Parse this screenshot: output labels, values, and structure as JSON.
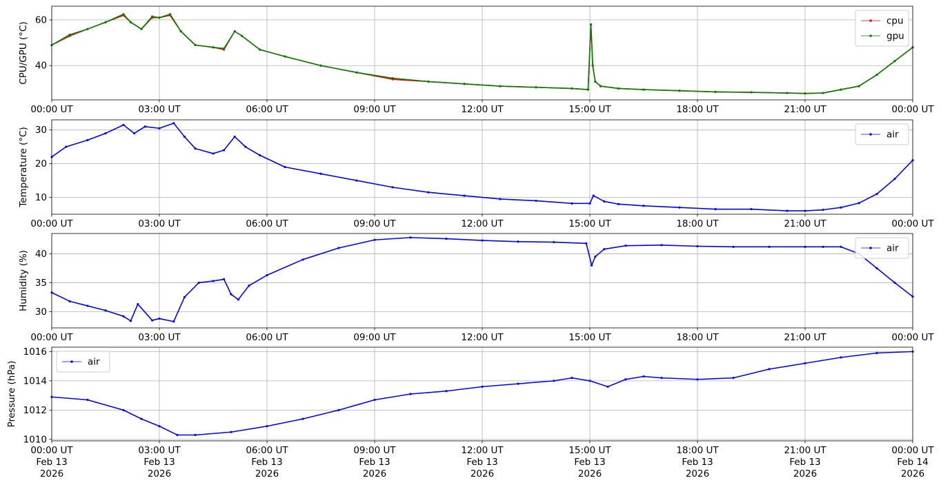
{
  "chart_data": [
    {
      "type": "line",
      "ylabel": "CPU/GPU (°C)",
      "ylim": [
        25,
        66
      ],
      "yticks": [
        40,
        60
      ],
      "grid": true,
      "legend": "top-right",
      "x_ticks": [
        "00:00 UT",
        "03:00 UT",
        "06:00 UT",
        "09:00 UT",
        "12:00 UT",
        "15:00 UT",
        "18:00 UT",
        "21:00 UT",
        "00:00 UT"
      ],
      "x_unit": "hours since 00:00 UT Feb 13 2026",
      "series": [
        {
          "name": "cpu",
          "color": "#ff0000",
          "x": [
            0,
            0.5,
            1.0,
            1.5,
            2.0,
            2.2,
            2.5,
            2.8,
            3.0,
            3.3,
            3.6,
            4.0,
            4.5,
            4.8,
            5.1,
            5.3,
            5.8,
            6.5,
            7.5,
            8.5,
            9.5,
            10.5,
            11.5,
            12.5,
            13.5,
            14.5,
            14.95,
            15.03,
            15.08,
            15.15,
            15.3,
            15.8,
            16.5,
            17.5,
            18.5,
            19.5,
            20.5,
            21.0,
            21.5,
            22.0,
            22.5,
            23.0,
            23.5,
            24.0
          ],
          "y": [
            49,
            53,
            56,
            59,
            62,
            59,
            56,
            61,
            61,
            62,
            55,
            49,
            48,
            47,
            55,
            53,
            47,
            44,
            40,
            37,
            34,
            33,
            32,
            31,
            30.5,
            30,
            29.5,
            58,
            40,
            33,
            31,
            30,
            29.5,
            29,
            28.5,
            28.3,
            28,
            27.8,
            28,
            29.5,
            31,
            36,
            42,
            48
          ]
        },
        {
          "name": "gpu",
          "color": "#008000",
          "x": [
            0,
            0.5,
            1.0,
            1.5,
            2.0,
            2.2,
            2.5,
            2.8,
            3.0,
            3.3,
            3.6,
            4.0,
            4.5,
            4.8,
            5.1,
            5.3,
            5.8,
            6.5,
            7.5,
            8.5,
            9.5,
            10.5,
            11.5,
            12.5,
            13.5,
            14.5,
            14.95,
            15.03,
            15.08,
            15.15,
            15.3,
            15.8,
            16.5,
            17.5,
            18.5,
            19.5,
            20.5,
            21.0,
            21.5,
            22.0,
            22.5,
            23.0,
            23.5,
            24.0
          ],
          "y": [
            49,
            53.5,
            56,
            59,
            62.5,
            59,
            56,
            61.5,
            61,
            62.5,
            55,
            49,
            48,
            47.5,
            55,
            53,
            47,
            44,
            40,
            37,
            34.5,
            33,
            32,
            31,
            30.5,
            30,
            29.5,
            58,
            40,
            33,
            31,
            30,
            29.5,
            29,
            28.5,
            28.3,
            28,
            27.8,
            28,
            29.5,
            31,
            36,
            42,
            48
          ]
        }
      ]
    },
    {
      "type": "line",
      "ylabel": "Temperature (°C)",
      "ylim": [
        5,
        33
      ],
      "yticks": [
        10,
        20,
        30
      ],
      "grid": true,
      "legend": "top-right",
      "x_ticks": [
        "00:00 UT",
        "03:00 UT",
        "06:00 UT",
        "09:00 UT",
        "12:00 UT",
        "15:00 UT",
        "18:00 UT",
        "21:00 UT",
        "00:00 UT"
      ],
      "x_unit": "hours since 00:00 UT Feb 13 2026",
      "series": [
        {
          "name": "air",
          "color": "#0000ff",
          "x": [
            0,
            0.4,
            1.0,
            1.5,
            2.0,
            2.3,
            2.6,
            3.0,
            3.4,
            3.7,
            4.0,
            4.5,
            4.8,
            5.1,
            5.4,
            5.8,
            6.5,
            7.5,
            8.5,
            9.5,
            10.5,
            11.5,
            12.5,
            13.5,
            14.5,
            15.0,
            15.1,
            15.4,
            15.8,
            16.5,
            17.5,
            18.5,
            19.5,
            20.5,
            21.0,
            21.5,
            22.0,
            22.5,
            23.0,
            23.5,
            24.0
          ],
          "y": [
            22,
            25,
            27,
            29,
            31.5,
            29,
            31,
            30.5,
            32,
            28,
            24.5,
            23,
            24,
            28,
            25,
            22.5,
            19,
            17,
            15,
            13,
            11.5,
            10.5,
            9.5,
            9,
            8.2,
            8.2,
            10.5,
            8.8,
            8,
            7.5,
            7,
            6.5,
            6.5,
            6,
            6,
            6.3,
            7,
            8.3,
            11,
            15.5,
            21
          ]
        }
      ]
    },
    {
      "type": "line",
      "ylabel": "Humidity (%)",
      "ylim": [
        27.2,
        43.5
      ],
      "yticks": [
        30,
        35,
        40
      ],
      "grid": true,
      "legend": "top-right",
      "x_ticks": [
        "00:00 UT",
        "03:00 UT",
        "06:00 UT",
        "09:00 UT",
        "12:00 UT",
        "15:00 UT",
        "18:00 UT",
        "21:00 UT",
        "00:00 UT"
      ],
      "x_unit": "hours since 00:00 UT Feb 13 2026",
      "series": [
        {
          "name": "air",
          "color": "#0000ff",
          "x": [
            0,
            0.5,
            1.0,
            1.5,
            2.0,
            2.2,
            2.4,
            2.8,
            3.0,
            3.4,
            3.7,
            4.1,
            4.5,
            4.8,
            5.0,
            5.2,
            5.5,
            6.0,
            7.0,
            8.0,
            9.0,
            10.0,
            11.0,
            12.0,
            13.0,
            14.0,
            14.9,
            15.05,
            15.15,
            15.4,
            16.0,
            17.0,
            18.0,
            19.0,
            20.0,
            21.0,
            21.5,
            22.0,
            22.5,
            23.0,
            23.5,
            24.0
          ],
          "y": [
            33.3,
            31.8,
            31,
            30.2,
            29.2,
            28.4,
            31.3,
            28.5,
            28.8,
            28.3,
            32.5,
            35,
            35.3,
            35.6,
            33,
            32.1,
            34.5,
            36.3,
            39,
            41,
            42.4,
            42.8,
            42.6,
            42.3,
            42.1,
            42,
            41.8,
            38,
            39.5,
            40.8,
            41.4,
            41.5,
            41.3,
            41.2,
            41.2,
            41.2,
            41.2,
            41.2,
            40,
            37.5,
            35,
            32.6
          ]
        }
      ]
    },
    {
      "type": "line",
      "ylabel": "Pressure (hPa)",
      "ylim": [
        1009.9,
        1016.3
      ],
      "yticks": [
        1010,
        1012,
        1014,
        1016
      ],
      "grid": true,
      "legend": "top-left",
      "x_ticks": [
        "00:00 UT\nFeb 13\n2026",
        "03:00 UT\nFeb 13\n2026",
        "06:00 UT\nFeb 13\n2026",
        "09:00 UT\nFeb 13\n2026",
        "12:00 UT\nFeb 13\n2026",
        "15:00 UT\nFeb 13\n2026",
        "18:00 UT\nFeb 13\n2026",
        "21:00 UT\nFeb 13\n2026",
        "00:00 UT\nFeb 14\n2026"
      ],
      "x_unit": "hours since 00:00 UT Feb 13 2026",
      "series": [
        {
          "name": "air",
          "color": "#0000ff",
          "x": [
            0,
            1.0,
            2.0,
            2.5,
            3.0,
            3.5,
            4.0,
            5.0,
            6.0,
            7.0,
            8.0,
            9.0,
            10.0,
            11.0,
            12.0,
            13.0,
            14.0,
            14.5,
            15.0,
            15.5,
            16.0,
            16.5,
            17.0,
            18.0,
            19.0,
            20.0,
            21.0,
            22.0,
            23.0,
            24.0
          ],
          "y": [
            1012.9,
            1012.7,
            1012.0,
            1011.4,
            1010.9,
            1010.3,
            1010.3,
            1010.5,
            1010.9,
            1011.4,
            1012.0,
            1012.7,
            1013.1,
            1013.3,
            1013.6,
            1013.8,
            1014.0,
            1014.2,
            1014.0,
            1013.6,
            1014.1,
            1014.3,
            1014.2,
            1014.1,
            1014.2,
            1014.8,
            1015.2,
            1015.6,
            1015.9,
            1016.0
          ]
        }
      ]
    }
  ]
}
